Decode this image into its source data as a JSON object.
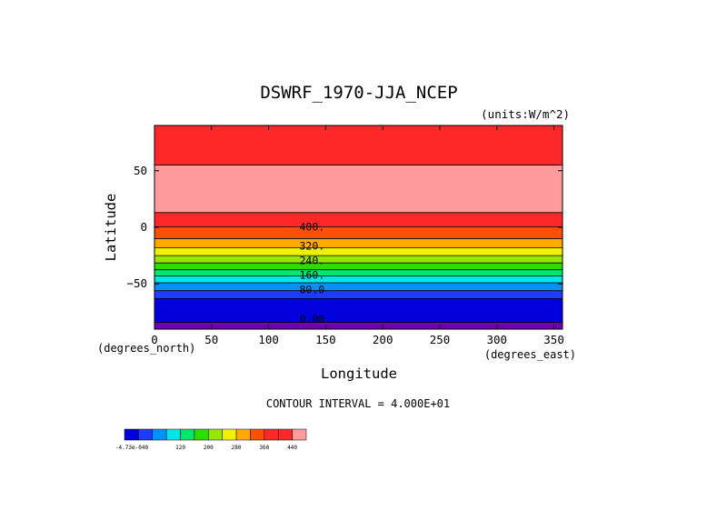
{
  "chart_data": {
    "type": "contour",
    "title": "DSWRF_1970-JJA_NCEP",
    "units": "(units:W/m^2)",
    "xlabel": "Longitude",
    "ylabel": "Latitude",
    "x_unit_label": "(degrees_east)",
    "y_unit_label": "(degrees_north)",
    "xlim": [
      0,
      357.5
    ],
    "ylim": [
      -90,
      90
    ],
    "x_ticks": [
      0,
      50,
      100,
      150,
      200,
      250,
      300,
      350
    ],
    "y_ticks": [
      {
        "value": 50,
        "label": "50"
      },
      {
        "value": 0,
        "label": "0"
      },
      {
        "value": -50,
        "label": "−50"
      }
    ],
    "bands": [
      {
        "lat_min": 55.0,
        "lat_max": 90.0,
        "color": "#ff2828"
      },
      {
        "lat_min": 13.0,
        "lat_max": 55.0,
        "color": "#ff9b9b"
      },
      {
        "lat_min": 0.5,
        "lat_max": 13.0,
        "color": "#ff2828"
      },
      {
        "lat_min": -10.0,
        "lat_max": 0.5,
        "color": "#ff5000"
      },
      {
        "lat_min": -18.0,
        "lat_max": -10.0,
        "color": "#ffaa00"
      },
      {
        "lat_min": -25.0,
        "lat_max": -18.0,
        "color": "#f0f000"
      },
      {
        "lat_min": -31.5,
        "lat_max": -25.0,
        "color": "#96e600"
      },
      {
        "lat_min": -37.5,
        "lat_max": -31.5,
        "color": "#2ddc00"
      },
      {
        "lat_min": -43.0,
        "lat_max": -37.5,
        "color": "#00e66e"
      },
      {
        "lat_min": -49.0,
        "lat_max": -43.0,
        "color": "#00e6e6"
      },
      {
        "lat_min": -56.0,
        "lat_max": -49.0,
        "color": "#0091ff"
      },
      {
        "lat_min": -63.0,
        "lat_max": -56.0,
        "color": "#1e3cff"
      },
      {
        "lat_min": -84.0,
        "lat_max": -63.0,
        "color": "#0000dc"
      },
      {
        "lat_min": -90.0,
        "lat_max": -84.0,
        "color": "#6e00b4"
      }
    ],
    "contour_lines": [
      55.0,
      13.0,
      0.5,
      -10.0,
      -18.0,
      -25.0,
      -31.5,
      -37.5,
      -43.0,
      -49.0,
      -56.0,
      -63.0,
      -84.0
    ],
    "contour_labels": [
      {
        "text": "400.",
        "lon": 127,
        "lat": 0.5
      },
      {
        "text": "320.",
        "lon": 127,
        "lat": -16.5
      },
      {
        "text": "240.",
        "lon": 127,
        "lat": -29.5
      },
      {
        "text": "160.",
        "lon": 127,
        "lat": -42.0
      },
      {
        "text": "80.0",
        "lon": 127,
        "lat": -55.0
      },
      {
        "text": "0.00",
        "lon": 127,
        "lat": -81.0
      }
    ],
    "contour_interval": "CONTOUR INTERVAL = 4.000E+01",
    "colorbar": {
      "colors": [
        "#0000dc",
        "#1e3cff",
        "#0091ff",
        "#00e6e6",
        "#00e66e",
        "#2ddc00",
        "#96e600",
        "#f0f000",
        "#ffaa00",
        "#ff5000",
        "#ff2828",
        "#ff2828",
        "#ff9b9b"
      ],
      "labels": [
        {
          "text": "-4.73e-040",
          "index": 0
        },
        {
          "text": "120",
          "index": 3
        },
        {
          "text": "200",
          "index": 5
        },
        {
          "text": "280",
          "index": 7
        },
        {
          "text": "360",
          "index": 9
        },
        {
          "text": "440",
          "index": 11
        }
      ]
    }
  }
}
